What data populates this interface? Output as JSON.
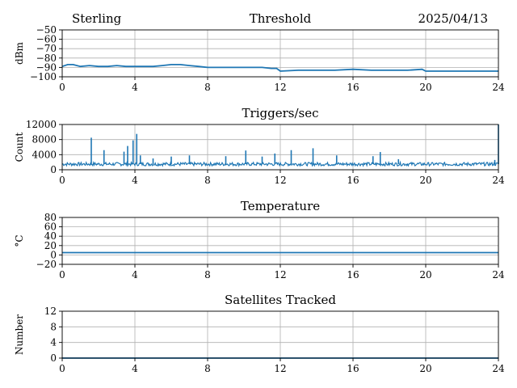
{
  "header": {
    "station": "Sterling",
    "date": "2025/04/13"
  },
  "style": {
    "line_color": "#1f77b4",
    "grid_color": "#b0b0b0"
  },
  "chart_data": [
    {
      "type": "line",
      "title": "Threshold",
      "xlabel": "",
      "ylabel": "dBm",
      "xlim": [
        0,
        24
      ],
      "ylim": [
        -100,
        -50
      ],
      "x_ticks": [
        0,
        4,
        8,
        12,
        16,
        20,
        24
      ],
      "y_ticks": [
        -100,
        -90,
        -80,
        -70,
        -60,
        -50
      ],
      "y_tick_labels": [
        "−100",
        "−90",
        "−80",
        "−70",
        "−60",
        "−50"
      ],
      "grid": true,
      "series": [
        {
          "x": [
            0,
            0.3,
            0.6,
            1.0,
            1.5,
            2.0,
            2.5,
            3.0,
            3.5,
            4.0,
            4.5,
            5.0,
            5.5,
            6.0,
            6.5,
            7.0,
            7.5,
            8.0,
            9.0,
            10.0,
            11.0,
            11.5,
            11.8,
            12.0,
            13.0,
            14.0,
            15.0,
            16.0,
            17.0,
            18.0,
            19.0,
            19.8,
            20.0,
            21.0,
            22.0,
            23.0,
            24.0
          ],
          "values": [
            -89,
            -87,
            -87,
            -89,
            -88,
            -89,
            -89,
            -88,
            -89,
            -89,
            -89,
            -89,
            -88,
            -87,
            -87,
            -88,
            -89,
            -90,
            -90,
            -90,
            -90,
            -91,
            -91,
            -94,
            -93,
            -93,
            -93,
            -92,
            -93,
            -93,
            -93,
            -92,
            -94,
            -94,
            -94,
            -94,
            -94
          ]
        }
      ]
    },
    {
      "type": "line",
      "title": "Triggers/sec",
      "xlabel": "",
      "ylabel": "Count",
      "xlim": [
        0,
        24
      ],
      "ylim": [
        0,
        12000
      ],
      "x_ticks": [
        0,
        4,
        8,
        12,
        16,
        20,
        24
      ],
      "y_ticks": [
        0,
        4000,
        8000,
        12000
      ],
      "y_tick_labels": [
        "0",
        "4000",
        "8000",
        "12000"
      ],
      "grid": true,
      "baseline": 1500,
      "spikes": [
        {
          "x": 1.6,
          "y": 8500
        },
        {
          "x": 2.3,
          "y": 5200
        },
        {
          "x": 3.4,
          "y": 4800
        },
        {
          "x": 3.6,
          "y": 6300
        },
        {
          "x": 3.9,
          "y": 7800
        },
        {
          "x": 4.1,
          "y": 9500
        },
        {
          "x": 4.3,
          "y": 3800
        },
        {
          "x": 5.0,
          "y": 3000
        },
        {
          "x": 6.0,
          "y": 3500
        },
        {
          "x": 7.0,
          "y": 3800
        },
        {
          "x": 9.0,
          "y": 3600
        },
        {
          "x": 10.1,
          "y": 5100
        },
        {
          "x": 11.0,
          "y": 3500
        },
        {
          "x": 11.7,
          "y": 4300
        },
        {
          "x": 12.6,
          "y": 5200
        },
        {
          "x": 13.8,
          "y": 5700
        },
        {
          "x": 15.1,
          "y": 3800
        },
        {
          "x": 17.1,
          "y": 3600
        },
        {
          "x": 17.5,
          "y": 4700
        },
        {
          "x": 18.5,
          "y": 2800
        },
        {
          "x": 23.8,
          "y": 2600
        },
        {
          "x": 24.0,
          "y": 12000
        }
      ]
    },
    {
      "type": "line",
      "title": "Temperature",
      "xlabel": "",
      "ylabel": "°C",
      "xlim": [
        0,
        24
      ],
      "ylim": [
        -20,
        80
      ],
      "x_ticks": [
        0,
        4,
        8,
        12,
        16,
        20,
        24
      ],
      "y_ticks": [
        -20,
        0,
        20,
        40,
        60,
        80
      ],
      "y_tick_labels": [
        "−20",
        "0",
        "20",
        "40",
        "60",
        "80"
      ],
      "grid": true,
      "series": [
        {
          "x": [
            0,
            24
          ],
          "values": [
            5,
            5
          ]
        }
      ]
    },
    {
      "type": "line",
      "title": "Satellites Tracked",
      "xlabel": "",
      "ylabel": "Number",
      "xlim": [
        0,
        24
      ],
      "ylim": [
        0,
        12
      ],
      "x_ticks": [
        0,
        4,
        8,
        12,
        16,
        20,
        24
      ],
      "y_ticks": [
        0,
        4,
        8,
        12
      ],
      "y_tick_labels": [
        "0",
        "4",
        "8",
        "12"
      ],
      "grid": true,
      "series": [
        {
          "x": [
            0,
            24
          ],
          "values": [
            0,
            0
          ]
        }
      ]
    }
  ]
}
